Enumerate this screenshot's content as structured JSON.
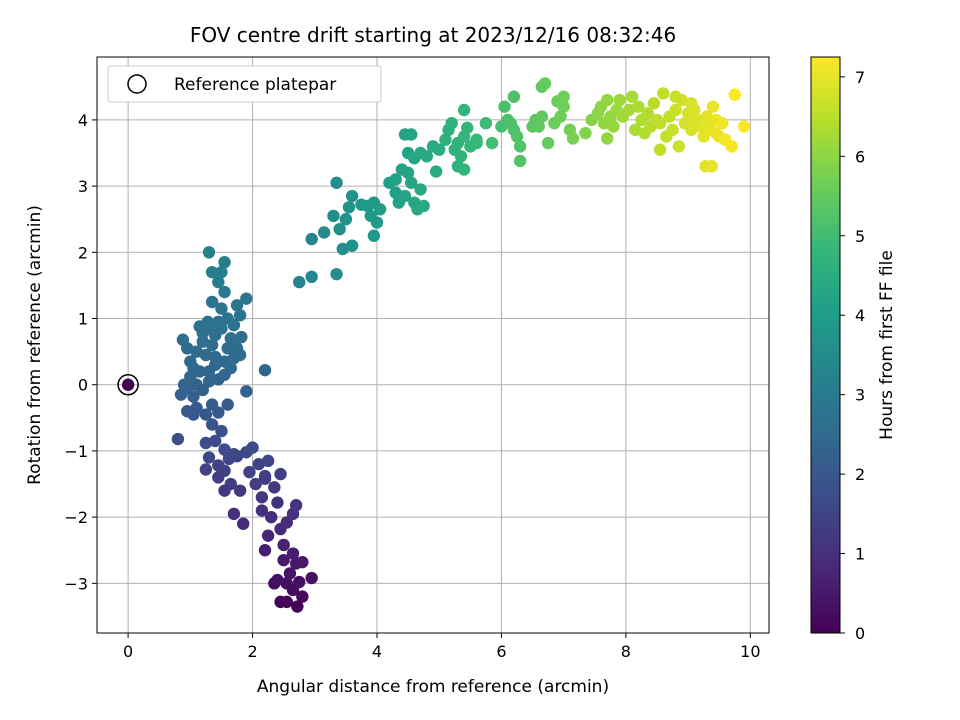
{
  "chart_data": {
    "type": "scatter",
    "title": "FOV centre drift starting at 2023/12/16 08:32:46",
    "xlabel": "Angular distance from reference (arcmin)",
    "ylabel": "Rotation from reference (arcmin)",
    "xlim": [
      -0.5,
      10.3
    ],
    "ylim": [
      -3.75,
      4.95
    ],
    "xticks": [
      0,
      2,
      4,
      6,
      8,
      10
    ],
    "yticks": [
      -3,
      -2,
      -1,
      0,
      1,
      2,
      3,
      4
    ],
    "grid": true,
    "legend": {
      "placement": "top-left",
      "entries": [
        "Reference platepar"
      ]
    },
    "reference_point": {
      "x": 0,
      "y": 0
    },
    "colorbar": {
      "label": "Hours from first FF file",
      "range": [
        0,
        7.25
      ],
      "ticks": [
        0,
        1,
        2,
        3,
        4,
        5,
        6,
        7
      ],
      "colormap": "viridis",
      "colors": [
        "#440154",
        "#482878",
        "#3e4989",
        "#31688e",
        "#26828e",
        "#1f9e89",
        "#35b779",
        "#6ece58",
        "#b5de2b",
        "#fde725"
      ]
    },
    "series": [
      {
        "comment_free": true,
        "points": [
          [
            2.72,
            -3.35
          ],
          [
            2.55,
            -3.28
          ],
          [
            2.8,
            -3.2
          ],
          [
            2.45,
            -3.28
          ],
          [
            2.65,
            -3.1
          ],
          [
            2.35,
            -3.0
          ],
          [
            2.55,
            -3.0
          ],
          [
            2.75,
            -2.98
          ],
          [
            2.95,
            -2.92
          ],
          [
            2.4,
            -2.95
          ],
          [
            2.6,
            -2.85
          ],
          [
            2.7,
            -2.7
          ],
          [
            2.8,
            -2.68
          ],
          [
            2.5,
            -2.65
          ],
          [
            2.65,
            -2.55
          ],
          [
            2.2,
            -2.5
          ],
          [
            2.5,
            -2.42
          ],
          [
            2.25,
            -2.28
          ],
          [
            2.45,
            -2.18
          ],
          [
            2.55,
            -2.08
          ],
          [
            2.3,
            -2.0
          ],
          [
            2.65,
            -1.95
          ],
          [
            2.7,
            -1.82
          ],
          [
            2.4,
            -1.78
          ],
          [
            2.15,
            -1.7
          ],
          [
            2.35,
            -1.55
          ],
          [
            2.05,
            -1.5
          ],
          [
            2.2,
            -1.38
          ],
          [
            2.45,
            -1.35
          ],
          [
            1.95,
            -1.32
          ],
          [
            2.1,
            -1.2
          ],
          [
            2.25,
            -1.15
          ],
          [
            1.75,
            -1.08
          ],
          [
            1.9,
            -1.02
          ],
          [
            2.0,
            -0.95
          ],
          [
            2.2,
            -1.42
          ],
          [
            2.15,
            -1.9
          ],
          [
            1.85,
            -2.1
          ],
          [
            1.7,
            -1.95
          ],
          [
            1.8,
            -1.6
          ],
          [
            1.65,
            -1.5
          ],
          [
            1.55,
            -1.3
          ],
          [
            1.45,
            -1.22
          ],
          [
            1.62,
            -1.12
          ],
          [
            1.7,
            -1.05
          ],
          [
            1.55,
            -0.98
          ],
          [
            1.4,
            -0.85
          ],
          [
            1.25,
            -0.88
          ],
          [
            1.5,
            -0.7
          ],
          [
            1.35,
            -0.6
          ],
          [
            1.25,
            -0.45
          ],
          [
            1.45,
            -0.42
          ],
          [
            1.6,
            -0.3
          ],
          [
            1.35,
            -0.3
          ],
          [
            1.1,
            -0.35
          ],
          [
            0.95,
            -0.4
          ],
          [
            1.05,
            -0.18
          ],
          [
            0.85,
            -0.15
          ],
          [
            0.95,
            -0.05
          ],
          [
            1.1,
            0.0
          ],
          [
            1.3,
            0.05
          ],
          [
            1.2,
            -0.08
          ],
          [
            1.45,
            0.08
          ],
          [
            1.55,
            0.15
          ],
          [
            0.8,
            -0.82
          ],
          [
            1.25,
            -1.28
          ],
          [
            1.3,
            -1.1
          ],
          [
            1.55,
            -1.6
          ],
          [
            1.45,
            -1.4
          ],
          [
            1.05,
            -0.45
          ],
          [
            0.9,
            0.0
          ],
          [
            1.0,
            0.12
          ],
          [
            1.15,
            0.2
          ],
          [
            1.0,
            0.35
          ],
          [
            0.95,
            0.55
          ],
          [
            0.88,
            0.68
          ],
          [
            1.1,
            0.5
          ],
          [
            1.2,
            0.65
          ],
          [
            1.25,
            0.45
          ],
          [
            1.35,
            0.6
          ],
          [
            1.4,
            0.75
          ],
          [
            1.5,
            0.85
          ],
          [
            1.6,
            0.55
          ],
          [
            1.65,
            0.7
          ],
          [
            1.75,
            0.55
          ],
          [
            1.55,
            0.35
          ],
          [
            1.4,
            0.3
          ],
          [
            1.3,
            0.2
          ],
          [
            1.65,
            0.25
          ],
          [
            1.8,
            0.45
          ],
          [
            1.7,
            0.9
          ],
          [
            1.8,
            1.05
          ],
          [
            1.75,
            1.2
          ],
          [
            1.9,
            1.3
          ],
          [
            1.6,
            1.0
          ],
          [
            1.5,
            1.15
          ],
          [
            1.35,
            1.25
          ],
          [
            1.45,
            0.95
          ],
          [
            1.3,
            0.85
          ],
          [
            1.2,
            0.78
          ],
          [
            1.15,
            0.88
          ],
          [
            1.55,
            1.4
          ],
          [
            1.45,
            1.55
          ],
          [
            1.5,
            1.7
          ],
          [
            1.35,
            1.7
          ],
          [
            1.55,
            1.85
          ],
          [
            1.3,
            2.0
          ],
          [
            1.7,
            0.4
          ],
          [
            1.82,
            0.72
          ],
          [
            1.4,
            0.42
          ],
          [
            1.9,
            -0.1
          ],
          [
            2.2,
            0.22
          ],
          [
            1.05,
            0.25
          ],
          [
            1.28,
            0.95
          ],
          [
            1.68,
            0.62
          ],
          [
            2.75,
            1.55
          ],
          [
            2.95,
            1.63
          ],
          [
            2.95,
            2.2
          ],
          [
            3.15,
            2.3
          ],
          [
            3.35,
            1.67
          ],
          [
            3.3,
            2.55
          ],
          [
            3.4,
            2.35
          ],
          [
            3.5,
            2.5
          ],
          [
            3.45,
            2.05
          ],
          [
            3.6,
            2.1
          ],
          [
            3.55,
            2.68
          ],
          [
            3.6,
            2.85
          ],
          [
            3.75,
            2.72
          ],
          [
            3.9,
            2.55
          ],
          [
            3.95,
            2.25
          ],
          [
            4.0,
            2.45
          ],
          [
            3.95,
            2.75
          ],
          [
            3.85,
            2.7
          ],
          [
            4.05,
            2.65
          ],
          [
            3.35,
            3.05
          ],
          [
            4.2,
            3.05
          ],
          [
            4.3,
            2.9
          ],
          [
            4.35,
            2.75
          ],
          [
            4.3,
            3.1
          ],
          [
            4.4,
            3.25
          ],
          [
            4.5,
            3.2
          ],
          [
            4.45,
            2.85
          ],
          [
            4.55,
            3.05
          ],
          [
            4.6,
            2.75
          ],
          [
            4.65,
            2.65
          ],
          [
            4.7,
            2.95
          ],
          [
            4.75,
            2.7
          ],
          [
            4.5,
            3.5
          ],
          [
            4.45,
            3.78
          ],
          [
            4.55,
            3.78
          ],
          [
            4.6,
            3.42
          ],
          [
            4.7,
            3.5
          ],
          [
            4.8,
            3.45
          ],
          [
            4.9,
            3.6
          ],
          [
            5.0,
            3.55
          ],
          [
            4.95,
            3.22
          ],
          [
            5.1,
            3.7
          ],
          [
            5.15,
            3.85
          ],
          [
            5.2,
            3.95
          ],
          [
            5.25,
            3.55
          ],
          [
            5.3,
            3.65
          ],
          [
            5.35,
            3.45
          ],
          [
            5.4,
            3.75
          ],
          [
            5.45,
            3.88
          ],
          [
            5.3,
            3.3
          ],
          [
            5.4,
            3.25
          ],
          [
            5.5,
            3.6
          ],
          [
            5.6,
            3.7
          ],
          [
            5.4,
            4.15
          ],
          [
            5.6,
            3.65
          ],
          [
            5.75,
            3.95
          ],
          [
            5.85,
            3.65
          ],
          [
            6.0,
            3.9
          ],
          [
            6.1,
            4.0
          ],
          [
            6.2,
            3.85
          ],
          [
            6.25,
            3.75
          ],
          [
            6.3,
            3.6
          ],
          [
            6.15,
            3.95
          ],
          [
            6.3,
            3.38
          ],
          [
            6.2,
            4.35
          ],
          [
            6.05,
            4.2
          ],
          [
            6.5,
            3.9
          ],
          [
            6.55,
            4.0
          ],
          [
            6.6,
            3.9
          ],
          [
            6.65,
            4.05
          ],
          [
            6.7,
            4.55
          ],
          [
            6.65,
            4.5
          ],
          [
            6.75,
            3.65
          ],
          [
            6.85,
            3.95
          ],
          [
            6.9,
            4.28
          ],
          [
            7.0,
            4.2
          ],
          [
            6.95,
            4.05
          ],
          [
            7.1,
            3.85
          ],
          [
            7.15,
            3.72
          ],
          [
            7.0,
            4.35
          ],
          [
            7.35,
            3.8
          ],
          [
            7.45,
            4.0
          ],
          [
            7.55,
            4.1
          ],
          [
            7.6,
            4.2
          ],
          [
            7.65,
            3.95
          ],
          [
            7.7,
            4.3
          ],
          [
            7.75,
            4.05
          ],
          [
            7.8,
            3.9
          ],
          [
            7.85,
            4.15
          ],
          [
            7.7,
            3.72
          ],
          [
            7.9,
            4.3
          ],
          [
            7.95,
            4.05
          ],
          [
            8.05,
            4.15
          ],
          [
            8.1,
            4.35
          ],
          [
            8.15,
            3.85
          ],
          [
            8.2,
            4.2
          ],
          [
            8.25,
            4.0
          ],
          [
            8.3,
            3.8
          ],
          [
            8.35,
            4.1
          ],
          [
            8.4,
            3.9
          ],
          [
            8.45,
            4.25
          ],
          [
            8.5,
            4.0
          ],
          [
            8.55,
            3.95
          ],
          [
            8.6,
            4.4
          ],
          [
            8.65,
            3.75
          ],
          [
            8.7,
            4.05
          ],
          [
            8.75,
            3.85
          ],
          [
            8.85,
            3.6
          ],
          [
            8.95,
            3.95
          ],
          [
            8.8,
            4.15
          ],
          [
            8.9,
            4.3
          ],
          [
            9.0,
            4.1
          ],
          [
            9.05,
            3.85
          ],
          [
            9.1,
            4.15
          ],
          [
            9.15,
            4.0
          ],
          [
            9.2,
            3.9
          ],
          [
            9.25,
            3.75
          ],
          [
            9.3,
            4.05
          ],
          [
            9.35,
            3.85
          ],
          [
            9.4,
            4.2
          ],
          [
            9.45,
            4.0
          ],
          [
            9.5,
            3.75
          ],
          [
            9.55,
            3.95
          ],
          [
            9.6,
            3.7
          ],
          [
            9.7,
            3.6
          ],
          [
            9.75,
            4.38
          ],
          [
            9.9,
            3.9
          ],
          [
            9.28,
            3.3
          ],
          [
            9.38,
            3.3
          ],
          [
            9.12,
            3.95
          ],
          [
            9.28,
            3.95
          ],
          [
            8.55,
            3.55
          ],
          [
            8.8,
            4.35
          ],
          [
            9.05,
            4.25
          ],
          [
            9.45,
            3.8
          ]
        ]
      }
    ]
  }
}
